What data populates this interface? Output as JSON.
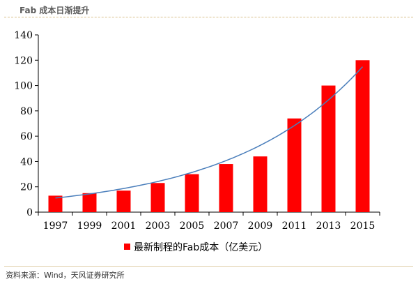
{
  "header": {
    "title": "Fab 成本日渐提升"
  },
  "footer": {
    "source": "资料来源：Wind，天风证券研究所"
  },
  "chart_data": {
    "type": "bar",
    "categories": [
      "1997",
      "1999",
      "2001",
      "2003",
      "2005",
      "2007",
      "2009",
      "2011",
      "2013",
      "2015"
    ],
    "series": [
      {
        "name": "最新制程的Fab成本（亿美元）",
        "values": [
          13,
          15,
          17,
          23,
          30,
          38,
          44,
          74,
          100,
          120
        ]
      }
    ],
    "trendline": {
      "type": "exponential",
      "color": "#4a7ebb"
    },
    "ylim": [
      0,
      140
    ],
    "yticks": [
      0,
      20,
      40,
      60,
      80,
      100,
      120,
      140
    ],
    "bar_color": "#ff0000",
    "legend_position": "bottom",
    "grid": false
  }
}
